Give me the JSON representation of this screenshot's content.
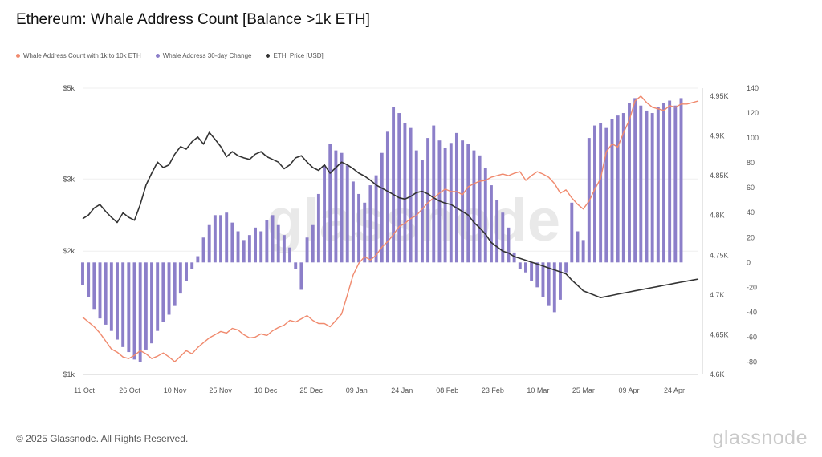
{
  "header": {
    "title": "Ethereum: Whale Address Count [Balance >1k ETH]"
  },
  "legend": [
    {
      "label": "Whale Address Count with 1k to 10k ETH",
      "color": "#f08a6e"
    },
    {
      "label": "Whale Address 30-day Change",
      "color": "#8c7fc9"
    },
    {
      "label": "ETH: Price [USD]",
      "color": "#333333"
    }
  ],
  "footer": {
    "copyright": "© 2025 Glassnode. All Rights Reserved.",
    "brand": "glassnode"
  },
  "watermark": "glassnode",
  "chart_data": {
    "type": "line",
    "x_ticks": [
      "11 Oct",
      "26 Oct",
      "10 Nov",
      "25 Nov",
      "10 Dec",
      "25 Dec",
      "09 Jan",
      "24 Jan",
      "08 Feb",
      "23 Feb",
      "10 Mar",
      "25 Mar",
      "09 Apr",
      "24 Apr"
    ],
    "y_left_ticks": [
      "$5k",
      "$3k",
      "$2k",
      "$1k"
    ],
    "y_right1_ticks": [
      "4.95K",
      "4.9K",
      "4.85K",
      "4.8K",
      "4.75K",
      "4.7K",
      "4.65K",
      "4.6K"
    ],
    "y_right2_ticks": [
      "140",
      "120",
      "100",
      "80",
      "60",
      "40",
      "20",
      "0",
      "-20",
      "-40",
      "-60",
      "-80"
    ],
    "y_left_scale": "log",
    "y_left_range": [
      1000,
      5000
    ],
    "y_right1_range": [
      4600,
      4960
    ],
    "y_right2_range": [
      -90,
      140
    ],
    "series": [
      {
        "name": "Whale Address Count with 1k to 10k ETH",
        "axis": "right1",
        "color": "#f08a6e",
        "values": [
          4672,
          4666,
          4660,
          4652,
          4642,
          4632,
          4628,
          4622,
          4620,
          4624,
          4630,
          4626,
          4620,
          4623,
          4627,
          4622,
          4616,
          4623,
          4630,
          4626,
          4634,
          4640,
          4646,
          4650,
          4654,
          4652,
          4658,
          4656,
          4650,
          4646,
          4647,
          4651,
          4649,
          4655,
          4659,
          4662,
          4668,
          4666,
          4670,
          4674,
          4668,
          4664,
          4664,
          4660,
          4668,
          4676,
          4700,
          4725,
          4740,
          4748,
          4744,
          4750,
          4760,
          4767,
          4776,
          4786,
          4790,
          4796,
          4800,
          4808,
          4816,
          4822,
          4828,
          4833,
          4830,
          4830,
          4826,
          4836,
          4840,
          4843,
          4844,
          4848,
          4850,
          4852,
          4850,
          4853,
          4855,
          4844,
          4850,
          4855,
          4852,
          4848,
          4840,
          4828,
          4832,
          4822,
          4814,
          4808,
          4818,
          4833,
          4846,
          4880,
          4890,
          4886,
          4904,
          4920,
          4944,
          4950,
          4942,
          4936,
          4934,
          4932,
          4938,
          4936,
          4940,
          4940,
          4942,
          4944
        ]
      },
      {
        "name": "Whale Address 30-day Change",
        "axis": "right2",
        "color": "#8c7fc9",
        "values": [
          -18,
          -28,
          -38,
          -45,
          -50,
          -55,
          -62,
          -68,
          -72,
          -78,
          -80,
          -70,
          -65,
          -55,
          -48,
          -42,
          -35,
          -25,
          -15,
          -5,
          5,
          20,
          30,
          38,
          38,
          40,
          32,
          25,
          18,
          22,
          28,
          25,
          34,
          38,
          30,
          22,
          12,
          -5,
          -22,
          20,
          30,
          55,
          78,
          95,
          90,
          88,
          78,
          65,
          55,
          48,
          62,
          70,
          88,
          105,
          125,
          120,
          112,
          108,
          90,
          82,
          100,
          110,
          98,
          92,
          96,
          104,
          98,
          95,
          90,
          86,
          76,
          62,
          50,
          40,
          28,
          8,
          -5,
          -8,
          -15,
          -20,
          -28,
          -35,
          -40,
          -30,
          -8,
          48,
          25,
          18,
          100,
          110,
          112,
          108,
          115,
          118,
          120,
          128,
          132,
          126,
          122,
          120,
          125,
          128,
          130,
          126,
          132
        ]
      },
      {
        "name": "ETH: Price [USD]",
        "axis": "left",
        "color": "#333333",
        "values": [
          2400,
          2450,
          2550,
          2600,
          2500,
          2420,
          2350,
          2480,
          2420,
          2380,
          2600,
          2900,
          3100,
          3300,
          3200,
          3250,
          3450,
          3600,
          3550,
          3700,
          3800,
          3650,
          3900,
          3750,
          3600,
          3400,
          3500,
          3420,
          3380,
          3350,
          3450,
          3500,
          3400,
          3350,
          3300,
          3180,
          3250,
          3380,
          3420,
          3300,
          3200,
          3150,
          3250,
          3100,
          3200,
          3300,
          3250,
          3180,
          3100,
          3050,
          2980,
          2900,
          2850,
          2800,
          2750,
          2700,
          2680,
          2720,
          2780,
          2800,
          2760,
          2700,
          2650,
          2620,
          2600,
          2550,
          2500,
          2450,
          2350,
          2280,
          2200,
          2100,
          2050,
          2000,
          1980,
          1940,
          1920,
          1900,
          1880,
          1860,
          1840,
          1820,
          1800,
          1780,
          1760,
          1700,
          1650,
          1600,
          1580,
          1560,
          1540,
          1550,
          1560,
          1570,
          1580,
          1590,
          1600,
          1610,
          1620,
          1630,
          1640,
          1650,
          1660,
          1670,
          1680,
          1690,
          1700,
          1710
        ]
      }
    ]
  }
}
